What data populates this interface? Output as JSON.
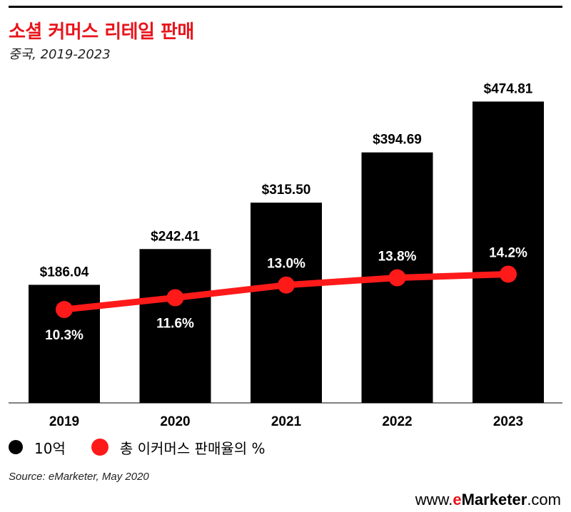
{
  "header": {
    "title": "소셜 커머스 리테일 판매",
    "subtitle": "중국, 2019-2023"
  },
  "colors": {
    "bar": "#000000",
    "line": "#ff1a1a",
    "title": "#e8141c"
  },
  "legend": {
    "bars_label": "10억",
    "line_label": "총 이커머스 판매율의 %"
  },
  "footer": {
    "source": "Source: eMarketer, May 2020",
    "brand_prefix": "www.",
    "brand_e": "e",
    "brand_main": "Marketer",
    "brand_suffix": ".com"
  },
  "chart_data": {
    "type": "bar",
    "categories": [
      "2019",
      "2020",
      "2021",
      "2022",
      "2023"
    ],
    "series": [
      {
        "name": "10억",
        "type": "bar",
        "values": [
          186.04,
          242.41,
          315.5,
          394.69,
          474.81
        ],
        "labels": [
          "$186.04",
          "$242.41",
          "$315.50",
          "$394.69",
          "$474.81"
        ]
      },
      {
        "name": "총 이커머스 판매율의 %",
        "type": "line",
        "values": [
          10.3,
          11.6,
          13.0,
          13.8,
          14.2
        ],
        "labels": [
          "10.3%",
          "11.6%",
          "13.0%",
          "13.8%",
          "14.2%"
        ]
      }
    ],
    "title": "소셜 커머스 리테일 판매",
    "subtitle": "중국, 2019-2023",
    "xlabel": "",
    "ylabel": "",
    "ylim": [
      0,
      500
    ],
    "y2lim": [
      0,
      35
    ],
    "grid": false,
    "legend_position": "bottom-left"
  }
}
